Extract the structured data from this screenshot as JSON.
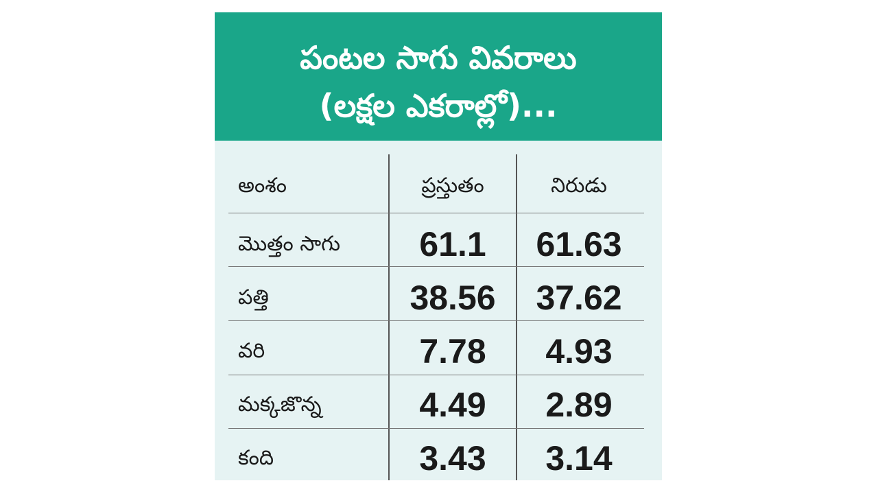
{
  "title": {
    "line1": "పంటల సాగు వివరాలు",
    "line2": "(లక్షల ఎకరాల్లో)..."
  },
  "columns": {
    "item": "అంశం",
    "current": "ప్రస్తుతం",
    "previous": "నిరుడు"
  },
  "rows": [
    {
      "label": "మొత్తం సాగు",
      "current": "61.1",
      "previous": "61.63"
    },
    {
      "label": "పత్తి",
      "current": "38.56",
      "previous": "37.62"
    },
    {
      "label": "వరి",
      "current": "7.78",
      "previous": "4.93"
    },
    {
      "label": "మక్కజొన్న",
      "current": "4.49",
      "previous": "2.89"
    },
    {
      "label": "కంది",
      "current": "3.43",
      "previous": "3.14"
    }
  ],
  "colors": {
    "header_bg": "#1aa689",
    "table_bg": "#e6f3f3",
    "text": "#1a1a1a"
  }
}
